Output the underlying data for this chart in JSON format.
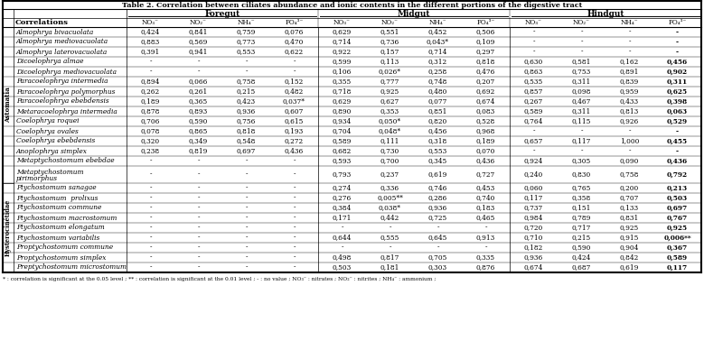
{
  "title": "Table 2. Correlation between ciliates abundance and ionic contents in the different portions of the digestive tract",
  "footnote": "* : correlation is significant at the 0.05 level ; ** : correlation is significant at the 0.01 level ; - : no value ; NO₃⁻ : nitrates ; NO₂⁻ : nitrites ; NH₄⁻ : ammonium ;",
  "species": [
    "Almophrya bivacuolata",
    "Almophrya mediovacuolata",
    "Almophrya laterovacuolata",
    "Dicoelophrya almae",
    "Dicoelophrya mediovacuolata",
    "Paracoelophrya intermedia",
    "Paracoelophrya polymorphus",
    "Paracoelophrya ebebdensis",
    "Metaracoelophrya intermedia",
    "Coelophrya roquei",
    "Coelophrya ovales",
    "Coelophrya ebebdensis",
    "Anoplophrya simplex",
    "Metaptychostomum ebebdae",
    "Metaptychostomum\npirimorphus",
    "Ptychostomum sanagae",
    "Ptychostomum  prolixus",
    "Ptychostomum commune",
    "Ptychostomum macrostomum",
    "Ptychostomum elongatum",
    "Ptychostomum variabilis",
    "Proptychostomum commune",
    "Proptychostomum simplex",
    "Preptychostomum microstomum"
  ],
  "data": [
    [
      "0,424",
      "0,841",
      "0,759",
      "0,076",
      "0,629",
      "0,551",
      "0,452",
      "0,506",
      "-",
      "-",
      "-",
      "-"
    ],
    [
      "0,883",
      "0,569",
      "0,773",
      "0,470",
      "0,714",
      "0,736",
      "0,043*",
      "0,109",
      "-",
      "-",
      "-",
      "-"
    ],
    [
      "0,391",
      "0,941",
      "0,553",
      "0,622",
      "0,922",
      "0,157",
      "0,714",
      "0,297",
      "-",
      "-",
      "-",
      "-"
    ],
    [
      "-",
      "-",
      "-",
      "-",
      "0,599",
      "0,113",
      "0,312",
      "0,818",
      "0,630",
      "0,581",
      "0,162",
      "0,456"
    ],
    [
      "-",
      "-",
      "-",
      "-",
      "0,106",
      "0,026*",
      "0,258",
      "0,476",
      "0,863",
      "0,753",
      "0,891",
      "0,902"
    ],
    [
      "0,894",
      "0,066",
      "0,758",
      "0,152",
      "0,355",
      "0,777",
      "0,748",
      "0,207",
      "0,535",
      "0,311",
      "0,839",
      "0,311"
    ],
    [
      "0,262",
      "0,261",
      "0,215",
      "0,482",
      "0,718",
      "0,925",
      "0,480",
      "0,692",
      "0,857",
      "0,098",
      "0,959",
      "0,625"
    ],
    [
      "0,189",
      "0,365",
      "0,423",
      "0,037*",
      "0,629",
      "0,627",
      "0,077",
      "0,674",
      "0,267",
      "0,467",
      "0,433",
      "0,398"
    ],
    [
      "0,878",
      "0,893",
      "0,936",
      "0,607",
      "0,890",
      "0,353",
      "0,851",
      "0,083",
      "0,589",
      "0,311",
      "0,813",
      "0,063"
    ],
    [
      "0,706",
      "0,590",
      "0,756",
      "0,615",
      "0,934",
      "0,050*",
      "0,820",
      "0,528",
      "0,764",
      "0,115",
      "0,926",
      "0,529"
    ],
    [
      "0,078",
      "0,865",
      "0,818",
      "0,193",
      "0,704",
      "0,048*",
      "0,456",
      "0,968",
      "-",
      "-",
      "-",
      "-"
    ],
    [
      "0,320",
      "0,349",
      "0,548",
      "0,272",
      "0,589",
      "0,111",
      "0,318",
      "0,189",
      "0,657",
      "0,117",
      "1,000",
      "0,455"
    ],
    [
      "0,238",
      "0,819",
      "0,697",
      "0,436",
      "0,682",
      "0,730",
      "0,553",
      "0,070",
      "-",
      "-",
      "-",
      "-"
    ],
    [
      "-",
      "-",
      "-",
      "-",
      "0,593",
      "0,700",
      "0,345",
      "0,436",
      "0,924",
      "0,305",
      "0,090",
      "0,436"
    ],
    [
      "-",
      "-",
      "-",
      "-",
      "0,793",
      "0,237",
      "0,619",
      "0,727",
      "0,240",
      "0,830",
      "0,758",
      "0,792"
    ],
    [
      "-",
      "-",
      "-",
      "-",
      "0,274",
      "0,336",
      "0,746",
      "0,453",
      "0,060",
      "0,765",
      "0,200",
      "0,213"
    ],
    [
      "-",
      "-",
      "-",
      "-",
      "0,276",
      "0,005**",
      "0,286",
      "0,740",
      "0,117",
      "0,358",
      "0,707",
      "0,503"
    ],
    [
      "-",
      "-",
      "-",
      "-",
      "0,384",
      "0,038*",
      "0,936",
      "0,183",
      "0,737",
      "0,151",
      "0,133",
      "0,697"
    ],
    [
      "-",
      "-",
      "-",
      "-",
      "0,171",
      "0,442",
      "0,725",
      "0,465",
      "0,984",
      "0,789",
      "0,831",
      "0,767"
    ],
    [
      "-",
      "-",
      "-",
      "-",
      "-",
      "-",
      "-",
      "-",
      "0,720",
      "0,717",
      "0,925",
      "0,925"
    ],
    [
      "-",
      "-",
      "-",
      "-",
      "0,644",
      "0,555",
      "0,645",
      "0,913",
      "0,710",
      "0,215",
      "0,915",
      "0,006**"
    ],
    [
      "-",
      "-",
      "-",
      "-",
      "-",
      "-",
      "-",
      "-",
      "0,182",
      "0,590",
      "0,904",
      "0,367"
    ],
    [
      "-",
      "-",
      "-",
      "-",
      "0,498",
      "0,817",
      "0,705",
      "0,335",
      "0,936",
      "0,424",
      "0,842",
      "0,589"
    ],
    [
      "-",
      "-",
      "-",
      "-",
      "0,503",
      "0,181",
      "0,303",
      "0,876",
      "0,674",
      "0,687",
      "0,619",
      "0,117"
    ]
  ],
  "col_display": [
    "NO₃⁻",
    "NO₂⁻",
    "NH₄⁻",
    "PO₄³⁻",
    "NO₃⁻",
    "NO₂⁻",
    "NH₄⁻",
    "PO₄³⁻",
    "NO₃⁻",
    "NO₂⁻",
    "NH₄⁻",
    "PO₄³⁻"
  ],
  "bg_color": "#ffffff"
}
